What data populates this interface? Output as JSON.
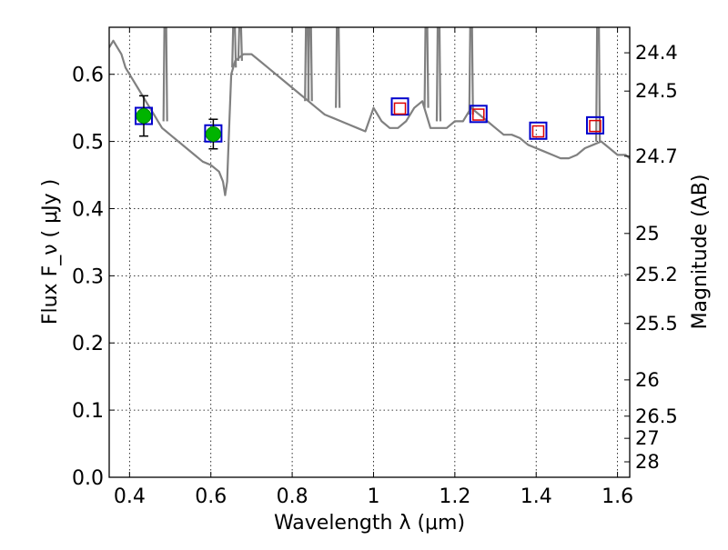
{
  "chart_data": {
    "type": "line",
    "xlabel": "Wavelength  λ (μm)",
    "ylabel": "Flux  F_ν  ( μJy )",
    "ylabel_right": "Magnitude (AB)",
    "xlim": [
      0.35,
      1.63
    ],
    "ylim": [
      0.0,
      0.67
    ],
    "grid": true,
    "x_ticks": [
      0.4,
      0.6,
      0.8,
      1.0,
      1.2,
      1.4,
      1.6
    ],
    "x_tick_labels": [
      "0.4",
      "0.6",
      "0.8",
      "1",
      "1.2",
      "1.4",
      "1.6"
    ],
    "y_ticks": [
      0.0,
      0.1,
      0.2,
      0.3,
      0.4,
      0.5,
      0.6
    ],
    "y_tick_labels": [
      "0.0",
      "0.1",
      "0.2",
      "0.3",
      "0.4",
      "0.5",
      "0.6"
    ],
    "right_axis_ticks": [
      {
        "label": "24.4",
        "flux": 0.632
      },
      {
        "label": "24.5",
        "flux": 0.575
      },
      {
        "label": "24.7",
        "flux": 0.478
      },
      {
        "label": "25",
        "flux": 0.363
      },
      {
        "label": "25.2",
        "flux": 0.302
      },
      {
        "label": "25.5",
        "flux": 0.229
      },
      {
        "label": "26",
        "flux": 0.145
      },
      {
        "label": "26.5",
        "flux": 0.091
      },
      {
        "label": "27",
        "flux": 0.058
      },
      {
        "label": "28",
        "flux": 0.023
      }
    ],
    "series": [
      {
        "kind": "model-spectrum",
        "color": "#808080",
        "x": [
          0.35,
          0.36,
          0.37,
          0.38,
          0.39,
          0.4,
          0.41,
          0.42,
          0.43,
          0.44,
          0.45,
          0.46,
          0.47,
          0.48,
          0.49,
          0.5,
          0.52,
          0.54,
          0.56,
          0.58,
          0.6,
          0.62,
          0.63,
          0.635,
          0.64,
          0.645,
          0.65,
          0.66,
          0.68,
          0.7,
          0.72,
          0.74,
          0.76,
          0.78,
          0.8,
          0.82,
          0.84,
          0.86,
          0.88,
          0.9,
          0.92,
          0.94,
          0.96,
          0.98,
          1.0,
          1.02,
          1.04,
          1.06,
          1.08,
          1.1,
          1.12,
          1.14,
          1.16,
          1.18,
          1.2,
          1.22,
          1.24,
          1.26,
          1.28,
          1.3,
          1.32,
          1.34,
          1.36,
          1.38,
          1.4,
          1.42,
          1.44,
          1.46,
          1.48,
          1.5,
          1.52,
          1.54,
          1.56,
          1.58,
          1.6,
          1.62,
          1.63
        ],
        "y": [
          0.64,
          0.65,
          0.64,
          0.63,
          0.61,
          0.6,
          0.59,
          0.58,
          0.57,
          0.56,
          0.55,
          0.54,
          0.53,
          0.52,
          0.515,
          0.51,
          0.5,
          0.49,
          0.48,
          0.47,
          0.465,
          0.455,
          0.44,
          0.42,
          0.44,
          0.52,
          0.6,
          0.62,
          0.63,
          0.63,
          0.62,
          0.61,
          0.6,
          0.59,
          0.58,
          0.57,
          0.56,
          0.55,
          0.54,
          0.535,
          0.53,
          0.525,
          0.52,
          0.515,
          0.55,
          0.53,
          0.52,
          0.52,
          0.53,
          0.55,
          0.56,
          0.52,
          0.52,
          0.52,
          0.53,
          0.53,
          0.55,
          0.54,
          0.53,
          0.52,
          0.51,
          0.51,
          0.505,
          0.495,
          0.49,
          0.485,
          0.48,
          0.475,
          0.475,
          0.48,
          0.49,
          0.495,
          0.5,
          0.49,
          0.48,
          0.48,
          0.475
        ]
      },
      {
        "kind": "emission-lines",
        "color": "#808080",
        "lines": [
          {
            "x": 0.488,
            "y0": 0.53,
            "y1": 0.67
          },
          {
            "x": 0.657,
            "y0": 0.61,
            "y1": 0.67
          },
          {
            "x": 0.672,
            "y0": 0.62,
            "y1": 0.67
          },
          {
            "x": 0.836,
            "y0": 0.56,
            "y1": 0.67
          },
          {
            "x": 0.844,
            "y0": 0.56,
            "y1": 0.67
          },
          {
            "x": 0.912,
            "y0": 0.55,
            "y1": 0.67
          },
          {
            "x": 1.13,
            "y0": 0.55,
            "y1": 0.67
          },
          {
            "x": 1.16,
            "y0": 0.53,
            "y1": 0.67
          },
          {
            "x": 1.24,
            "y0": 0.54,
            "y1": 0.67
          },
          {
            "x": 1.552,
            "y0": 0.5,
            "y1": 0.67
          }
        ]
      },
      {
        "kind": "observed",
        "marker": "circle",
        "color": "#00b400",
        "points": [
          {
            "x": 0.435,
            "y": 0.538,
            "yerr": 0.03
          },
          {
            "x": 0.606,
            "y": 0.511,
            "yerr": 0.022
          }
        ]
      },
      {
        "kind": "model-photometry",
        "marker": "square",
        "color": "#0000cc",
        "points": [
          {
            "x": 0.435,
            "y": 0.538
          },
          {
            "x": 0.606,
            "y": 0.512
          },
          {
            "x": 1.065,
            "y": 0.552
          },
          {
            "x": 1.258,
            "y": 0.541
          },
          {
            "x": 1.405,
            "y": 0.516
          },
          {
            "x": 1.545,
            "y": 0.524
          }
        ]
      },
      {
        "kind": "predicted",
        "marker": "square",
        "color": "#dd0000",
        "points": [
          {
            "x": 1.065,
            "y": 0.549
          },
          {
            "x": 1.258,
            "y": 0.54
          },
          {
            "x": 1.405,
            "y": 0.515
          },
          {
            "x": 1.545,
            "y": 0.523
          }
        ]
      }
    ]
  }
}
